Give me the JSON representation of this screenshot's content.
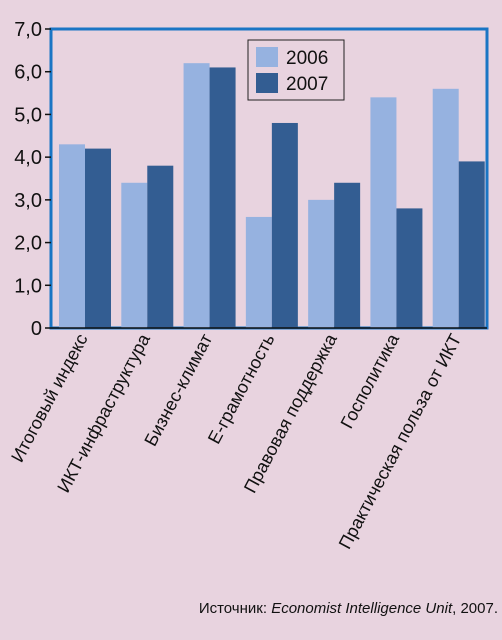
{
  "chart_data": {
    "type": "bar",
    "categories": [
      "Итоговый индекс",
      "ИКТ-инфраструктура",
      "Бизнес-климат",
      "Е-грамотность",
      "Правовая поддержка",
      "Госполитика",
      "Практическая польза от ИКТ"
    ],
    "series": [
      {
        "name": "2006",
        "values": [
          4.3,
          3.4,
          6.2,
          2.6,
          3.0,
          5.4,
          5.6
        ]
      },
      {
        "name": "2007",
        "values": [
          4.2,
          3.8,
          6.1,
          4.8,
          3.4,
          2.8,
          3.9
        ]
      }
    ],
    "ylim": [
      0,
      7
    ],
    "y_ticks": [
      "0",
      "1,0",
      "2,0",
      "3,0",
      "4,0",
      "5,0",
      "6,0",
      "7,0"
    ],
    "grid": false,
    "legend_placement": "top-center",
    "colors": {
      "series_2006": "#96b2e0",
      "series_2007": "#335d92",
      "background": "#e8d3df",
      "plot_border": "#1a75c4"
    }
  },
  "source": {
    "prefix": "Источник: ",
    "italic": "Economist Intelligence Unit",
    "suffix": ", 2007."
  }
}
